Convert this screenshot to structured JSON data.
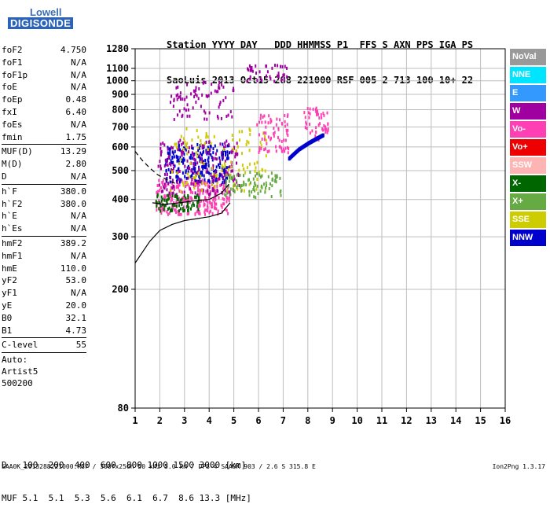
{
  "logo": {
    "line1": "Lowell",
    "line2": "DIGISONDE"
  },
  "header": {
    "labels": "Station YYYY DAY   DDD HHMMSS P1  FFS S AXN PPS IGA PS",
    "values": "SaoLuis 2013 Oct15 288 221000 RSF 005 2 713 100 10+ 22"
  },
  "params": {
    "group1": [
      {
        "k": "foF2",
        "v": "4.750"
      },
      {
        "k": "foF1",
        "v": "N/A"
      },
      {
        "k": "foF1p",
        "v": "N/A"
      },
      {
        "k": "foE",
        "v": "N/A"
      },
      {
        "k": "foEp",
        "v": "0.48"
      },
      {
        "k": "fxI",
        "v": "6.40"
      },
      {
        "k": "foEs",
        "v": "N/A"
      },
      {
        "k": "fmin",
        "v": "1.75"
      }
    ],
    "group2": [
      {
        "k": "MUF(D)",
        "v": "13.29"
      },
      {
        "k": "M(D)",
        "v": "2.80"
      },
      {
        "k": "D",
        "v": "N/A"
      }
    ],
    "group3": [
      {
        "k": "h`F",
        "v": "380.0"
      },
      {
        "k": "h`F2",
        "v": "380.0"
      },
      {
        "k": "h`E",
        "v": "N/A"
      },
      {
        "k": "h`Es",
        "v": "N/A"
      }
    ],
    "group4": [
      {
        "k": "hmF2",
        "v": "389.2"
      },
      {
        "k": "hmF1",
        "v": "N/A"
      },
      {
        "k": "hmE",
        "v": "110.0"
      },
      {
        "k": "yF2",
        "v": "53.0"
      },
      {
        "k": "yF1",
        "v": "N/A"
      },
      {
        "k": "yE",
        "v": "20.0"
      },
      {
        "k": "B0",
        "v": "32.1"
      },
      {
        "k": "B1",
        "v": "4.73"
      }
    ],
    "group5": [
      {
        "k": "C-level",
        "v": "55"
      }
    ],
    "auto": [
      "Auto:",
      "Artist5",
      "500200"
    ]
  },
  "legend": [
    {
      "label": "NoVal",
      "color": "#999999"
    },
    {
      "label": "NNE",
      "color": "#00e5ff"
    },
    {
      "label": "E",
      "color": "#3399ff"
    },
    {
      "label": "W",
      "color": "#a000a0"
    },
    {
      "label": "Vo-",
      "color": "#ff3fb4"
    },
    {
      "label": "Vo+",
      "color": "#ee0000"
    },
    {
      "label": "SSW",
      "color": "#ffb4b4"
    },
    {
      "label": "X-",
      "color": "#006600"
    },
    {
      "label": "X+",
      "color": "#66aa44"
    },
    {
      "label": "SSE",
      "color": "#cccc00"
    },
    {
      "label": "NNW",
      "color": "#0000cc"
    }
  ],
  "chart_data": {
    "type": "scatter",
    "title": "",
    "xlabel": "",
    "ylabel": "",
    "xlim": [
      1,
      16
    ],
    "ylim": [
      80,
      1280
    ],
    "y_scale": "log",
    "grid": true,
    "x_ticks": [
      1,
      2,
      3,
      4,
      5,
      6,
      7,
      8,
      9,
      10,
      11,
      12,
      13,
      14,
      15,
      16
    ],
    "y_ticks": [
      80,
      200,
      300,
      400,
      500,
      600,
      700,
      800,
      900,
      1000,
      1100,
      1280
    ],
    "clusters": [
      {
        "name": "o-trace main",
        "color": "#ff3fb4",
        "x": [
          1.8,
          4.8
        ],
        "y": [
          360,
          470
        ],
        "n": 260
      },
      {
        "name": "o-trace upper",
        "color": "#0000cc",
        "x": [
          2.2,
          4.8
        ],
        "y": [
          460,
          620
        ],
        "n": 240
      },
      {
        "name": "W echoes",
        "color": "#a000a0",
        "x": [
          1.9,
          5.2
        ],
        "y": [
          420,
          640
        ],
        "n": 200
      },
      {
        "name": "SSE spread",
        "color": "#cccc00",
        "x": [
          2.4,
          6.3
        ],
        "y": [
          430,
          700
        ],
        "n": 120
      },
      {
        "name": "X- trace",
        "color": "#006600",
        "x": [
          1.8,
          3.6
        ],
        "y": [
          370,
          420
        ],
        "n": 80
      },
      {
        "name": "low slope",
        "color": "#66aa44",
        "x": [
          4.6,
          6.9
        ],
        "y": [
          410,
          500
        ],
        "n": 90
      },
      {
        "name": "second hop",
        "color": "#a000a0",
        "x": [
          2.4,
          5.0
        ],
        "y": [
          750,
          1000
        ],
        "n": 80
      },
      {
        "name": "third hop",
        "color": "#a000a0",
        "x": [
          5.5,
          7.2
        ],
        "y": [
          1000,
          1140
        ],
        "n": 40
      },
      {
        "name": "mid patch",
        "color": "#ff3fb4",
        "x": [
          5.9,
          7.2
        ],
        "y": [
          580,
          780
        ],
        "n": 70
      },
      {
        "name": "right trace",
        "color": "#ff3fb4",
        "x": [
          7.8,
          8.8
        ],
        "y": [
          640,
          820
        ],
        "n": 50
      }
    ],
    "x_trace_line": {
      "color": "#0000cc",
      "points": [
        [
          7.2,
          550
        ],
        [
          7.6,
          590
        ],
        [
          8.0,
          620
        ],
        [
          8.3,
          640
        ],
        [
          8.6,
          660
        ]
      ]
    },
    "curves": [
      {
        "name": "profile",
        "points": [
          [
            1.0,
            245
          ],
          [
            1.6,
            290
          ],
          [
            2.0,
            315
          ],
          [
            2.5,
            330
          ],
          [
            3.0,
            340
          ],
          [
            3.5,
            345
          ],
          [
            4.0,
            350
          ],
          [
            4.5,
            360
          ],
          [
            4.85,
            390
          ]
        ]
      },
      {
        "name": "model",
        "points": [
          [
            1.7,
            390
          ],
          [
            2.2,
            385
          ],
          [
            2.8,
            390
          ],
          [
            3.3,
            395
          ],
          [
            4.0,
            400
          ],
          [
            4.5,
            420
          ],
          [
            4.8,
            450
          ]
        ]
      },
      {
        "name": "dashed",
        "dashed": true,
        "points": [
          [
            1.0,
            580
          ],
          [
            1.3,
            540
          ],
          [
            1.6,
            510
          ],
          [
            1.9,
            485
          ],
          [
            2.3,
            465
          ],
          [
            2.7,
            450
          ]
        ]
      }
    ]
  },
  "footer": {
    "d_label": "D",
    "d_values": "100  200  400  600  800 1000 1500 3000 [km]",
    "muf_label": "MUF",
    "muf_values": "5.1  5.1  5.3  5.6  6.1  6.7  8.6 13.3 [MHz]",
    "source": "SAA0K_2013288221000.RSF / 300fx256h 50 kHz 5.0 km / DPS-4 SAA0K 903 / 2.6 S 315.8 E",
    "version": "Ion2Png 1.3.17"
  }
}
